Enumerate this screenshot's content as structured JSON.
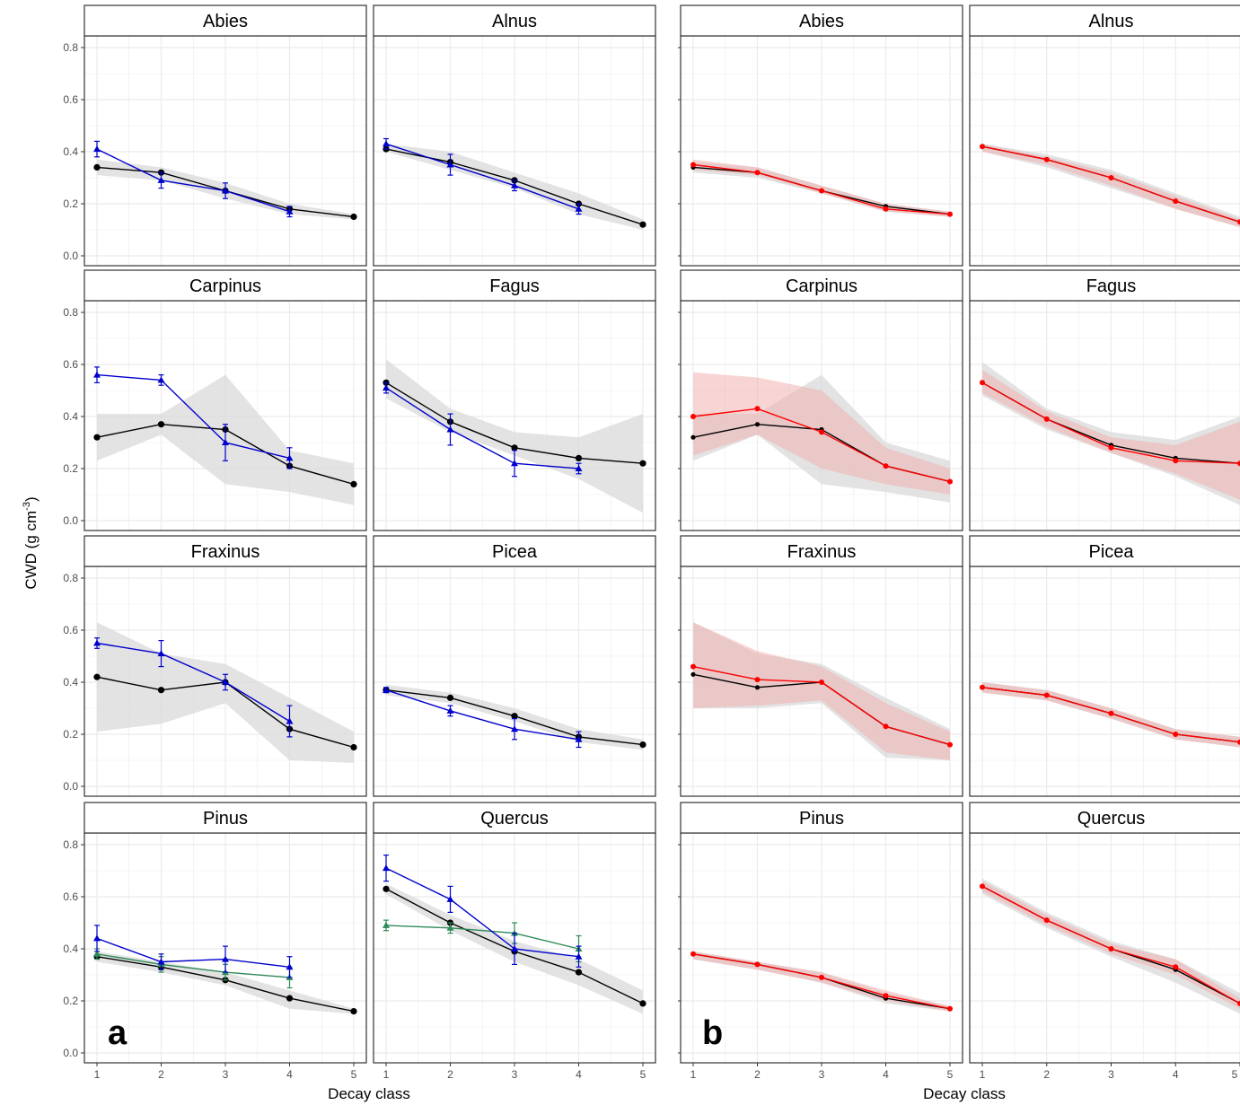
{
  "figure": {
    "ylabel_main": "CWD (g cm",
    "ylabel_sup": "-3",
    "ylabel_close": ")",
    "xlabel_a": "Decay class",
    "xlabel_b": "Decay class",
    "letter_a": "a",
    "letter_b": "b"
  },
  "colors": {
    "grey_ribbon": "#d9d9d9",
    "red_ribbon": "#f0b3b3",
    "black_series": "#000000",
    "blue_series": "#0000cc",
    "green_series": "#2e8b57",
    "red_series": "#ff0000",
    "grid": "#ebebeb",
    "strip_fill": "#ffffff"
  },
  "chart_data": [
    {
      "type": "line",
      "panel": "a",
      "x": [
        1,
        2,
        3,
        4,
        5
      ],
      "xticks": [
        "1",
        "2",
        "3",
        "4",
        "5"
      ],
      "ylim": [
        0,
        0.8
      ],
      "yticks": [
        "0.0",
        "0.2",
        "0.4",
        "0.6",
        "0.8"
      ],
      "grid": true,
      "facets": [
        {
          "title": "Abies",
          "black": [
            0.34,
            0.32,
            0.25,
            0.18,
            0.15
          ],
          "ribbon_lo": [
            0.31,
            0.29,
            0.22,
            0.16,
            0.14
          ],
          "ribbon_hi": [
            0.37,
            0.34,
            0.28,
            0.2,
            0.16
          ],
          "blue": [
            0.41,
            0.29,
            0.25,
            0.17,
            null
          ],
          "blue_err": [
            0.03,
            0.03,
            0.03,
            0.02,
            null
          ]
        },
        {
          "title": "Alnus",
          "black": [
            0.41,
            0.36,
            0.29,
            0.2,
            0.12
          ],
          "ribbon_lo": [
            0.4,
            0.33,
            0.26,
            0.16,
            0.1
          ],
          "ribbon_hi": [
            0.43,
            0.4,
            0.32,
            0.24,
            0.14
          ],
          "blue": [
            0.43,
            0.35,
            0.27,
            0.18,
            null
          ],
          "blue_err": [
            0.02,
            0.04,
            0.02,
            0.02,
            null
          ]
        },
        {
          "title": "Carpinus",
          "black": [
            0.32,
            0.37,
            0.35,
            0.21,
            0.14
          ],
          "ribbon_lo": [
            0.23,
            0.33,
            0.14,
            0.11,
            0.06
          ],
          "ribbon_hi": [
            0.41,
            0.41,
            0.56,
            0.27,
            0.22
          ],
          "blue": [
            0.56,
            0.54,
            0.3,
            0.24,
            null
          ],
          "blue_err": [
            0.03,
            0.02,
            0.07,
            0.04,
            null
          ]
        },
        {
          "title": "Fagus",
          "black": [
            0.53,
            0.38,
            0.28,
            0.24,
            0.22
          ],
          "ribbon_lo": [
            0.47,
            0.34,
            0.25,
            0.16,
            0.03
          ],
          "ribbon_hi": [
            0.62,
            0.43,
            0.34,
            0.32,
            0.41
          ],
          "blue": [
            0.51,
            0.35,
            0.22,
            0.2,
            null
          ],
          "blue_err": [
            0.02,
            0.06,
            0.05,
            0.02,
            null
          ]
        },
        {
          "title": "Fraxinus",
          "black": [
            0.42,
            0.37,
            0.4,
            0.22,
            0.15
          ],
          "ribbon_lo": [
            0.21,
            0.24,
            0.32,
            0.1,
            0.09
          ],
          "ribbon_hi": [
            0.63,
            0.51,
            0.47,
            0.34,
            0.21
          ],
          "blue": [
            0.55,
            0.51,
            0.4,
            0.25,
            null
          ],
          "blue_err": [
            0.02,
            0.05,
            0.03,
            0.06,
            null
          ]
        },
        {
          "title": "Picea",
          "black": [
            0.37,
            0.34,
            0.27,
            0.19,
            0.16
          ],
          "ribbon_lo": [
            0.35,
            0.32,
            0.25,
            0.17,
            0.14
          ],
          "ribbon_hi": [
            0.39,
            0.36,
            0.3,
            0.22,
            0.18
          ],
          "blue": [
            0.37,
            0.29,
            0.22,
            0.18,
            null
          ],
          "blue_err": [
            0.01,
            0.02,
            0.04,
            0.03,
            null
          ]
        },
        {
          "title": "Pinus",
          "black": [
            0.37,
            0.33,
            0.28,
            0.21,
            0.16
          ],
          "ribbon_lo": [
            0.35,
            0.31,
            0.26,
            0.17,
            0.15
          ],
          "ribbon_hi": [
            0.39,
            0.35,
            0.31,
            0.24,
            0.17
          ],
          "blue": [
            0.44,
            0.35,
            0.36,
            0.33,
            null
          ],
          "blue_err": [
            0.05,
            0.03,
            0.05,
            0.04,
            null
          ],
          "green": [
            0.38,
            0.34,
            0.31,
            0.29,
            null
          ],
          "green_err": [
            0.02,
            0.03,
            0.03,
            0.04,
            null
          ]
        },
        {
          "title": "Quercus",
          "black": [
            0.63,
            0.5,
            0.39,
            0.31,
            0.19
          ],
          "ribbon_lo": [
            0.61,
            0.47,
            0.35,
            0.26,
            0.15
          ],
          "ribbon_hi": [
            0.65,
            0.53,
            0.43,
            0.36,
            0.24
          ],
          "blue": [
            0.71,
            0.59,
            0.4,
            0.37,
            null
          ],
          "blue_err": [
            0.05,
            0.05,
            0.06,
            0.04,
            null
          ],
          "green": [
            0.49,
            0.48,
            0.46,
            0.4,
            null
          ],
          "green_err": [
            0.02,
            0.02,
            0.04,
            0.05,
            null
          ]
        }
      ]
    },
    {
      "type": "line",
      "panel": "b",
      "x": [
        1,
        2,
        3,
        4,
        5
      ],
      "xticks": [
        "1",
        "2",
        "3",
        "4",
        "5"
      ],
      "ylim": [
        0,
        0.8
      ],
      "grid": true,
      "facets": [
        {
          "title": "Abies",
          "black": [
            0.34,
            0.32,
            0.25,
            0.19,
            0.16
          ],
          "grey_lo": [
            0.32,
            0.3,
            0.24,
            0.17,
            0.15
          ],
          "grey_hi": [
            0.36,
            0.34,
            0.27,
            0.2,
            0.17
          ],
          "red": [
            0.35,
            0.32,
            0.25,
            0.18,
            0.16
          ],
          "red_lo": [
            0.33,
            0.31,
            0.24,
            0.17,
            0.15
          ],
          "red_hi": [
            0.37,
            0.34,
            0.27,
            0.2,
            0.17
          ]
        },
        {
          "title": "Alnus",
          "black": [
            0.42,
            0.37,
            0.3,
            0.21,
            0.13
          ],
          "grey_lo": [
            0.4,
            0.34,
            0.26,
            0.18,
            0.11
          ],
          "grey_hi": [
            0.43,
            0.39,
            0.33,
            0.24,
            0.15
          ],
          "red": [
            0.42,
            0.37,
            0.3,
            0.21,
            0.13
          ],
          "red_lo": [
            0.4,
            0.35,
            0.27,
            0.18,
            0.11
          ],
          "red_hi": [
            0.43,
            0.38,
            0.32,
            0.23,
            0.14
          ]
        },
        {
          "title": "Carpinus",
          "black": [
            0.32,
            0.37,
            0.35,
            0.21,
            0.15
          ],
          "grey_lo": [
            0.23,
            0.33,
            0.14,
            0.11,
            0.07
          ],
          "grey_hi": [
            0.41,
            0.41,
            0.56,
            0.3,
            0.23
          ],
          "red": [
            0.4,
            0.43,
            0.34,
            0.21,
            0.15
          ],
          "red_lo": [
            0.25,
            0.33,
            0.2,
            0.14,
            0.1
          ],
          "red_hi": [
            0.57,
            0.55,
            0.5,
            0.28,
            0.2
          ]
        },
        {
          "title": "Fagus",
          "black": [
            0.53,
            0.39,
            0.29,
            0.24,
            0.22
          ],
          "grey_lo": [
            0.48,
            0.35,
            0.26,
            0.17,
            0.06
          ],
          "grey_hi": [
            0.61,
            0.43,
            0.34,
            0.31,
            0.4
          ],
          "red": [
            0.53,
            0.39,
            0.28,
            0.23,
            0.22
          ],
          "red_lo": [
            0.49,
            0.36,
            0.26,
            0.18,
            0.08
          ],
          "red_hi": [
            0.58,
            0.42,
            0.32,
            0.29,
            0.38
          ]
        },
        {
          "title": "Fraxinus",
          "black": [
            0.43,
            0.38,
            0.4,
            0.23,
            0.16
          ],
          "grey_lo": [
            0.3,
            0.3,
            0.32,
            0.11,
            0.1
          ],
          "grey_hi": [
            0.63,
            0.51,
            0.47,
            0.34,
            0.22
          ],
          "red": [
            0.46,
            0.41,
            0.4,
            0.23,
            0.16
          ],
          "red_lo": [
            0.3,
            0.31,
            0.33,
            0.13,
            0.1
          ],
          "red_hi": [
            0.63,
            0.52,
            0.46,
            0.32,
            0.21
          ]
        },
        {
          "title": "Picea",
          "black": [
            0.38,
            0.35,
            0.28,
            0.2,
            0.17
          ],
          "grey_lo": [
            0.36,
            0.33,
            0.26,
            0.18,
            0.15
          ],
          "grey_hi": [
            0.4,
            0.37,
            0.3,
            0.22,
            0.19
          ],
          "red": [
            0.38,
            0.35,
            0.28,
            0.2,
            0.17
          ],
          "red_lo": [
            0.36,
            0.33,
            0.26,
            0.18,
            0.15
          ],
          "red_hi": [
            0.4,
            0.37,
            0.3,
            0.22,
            0.19
          ]
        },
        {
          "title": "Pinus",
          "black": [
            0.38,
            0.34,
            0.29,
            0.21,
            0.17
          ],
          "grey_lo": [
            0.36,
            0.32,
            0.27,
            0.19,
            0.16
          ],
          "grey_hi": [
            0.39,
            0.35,
            0.31,
            0.23,
            0.18
          ],
          "red": [
            0.38,
            0.34,
            0.29,
            0.22,
            0.17
          ],
          "red_lo": [
            0.36,
            0.32,
            0.27,
            0.2,
            0.16
          ],
          "red_hi": [
            0.39,
            0.35,
            0.31,
            0.24,
            0.18
          ]
        },
        {
          "title": "Quercus",
          "black": [
            0.64,
            0.51,
            0.4,
            0.32,
            0.19
          ],
          "grey_lo": [
            0.61,
            0.48,
            0.37,
            0.27,
            0.15
          ],
          "grey_hi": [
            0.67,
            0.54,
            0.43,
            0.36,
            0.23
          ],
          "red": [
            0.64,
            0.51,
            0.4,
            0.33,
            0.19
          ],
          "red_lo": [
            0.62,
            0.49,
            0.38,
            0.3,
            0.17
          ],
          "red_hi": [
            0.66,
            0.53,
            0.42,
            0.36,
            0.21
          ]
        }
      ]
    }
  ]
}
